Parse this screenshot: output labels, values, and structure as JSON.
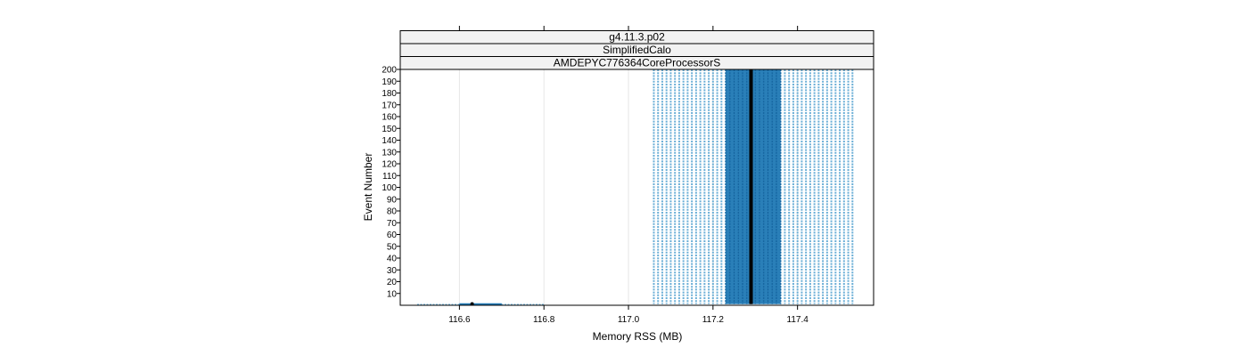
{
  "chart_data": {
    "type": "scatter",
    "strips": [
      "g4.11.3.p02",
      "SimplifiedCalo",
      "AMDEPYC776364CoreProcessorS"
    ],
    "xlabel": "Memory RSS (MB)",
    "ylabel": "Event Number",
    "xlim": [
      116.46,
      117.58
    ],
    "ylim": [
      0,
      200
    ],
    "x_ticks": [
      116.6,
      116.8,
      117.0,
      117.2,
      117.4
    ],
    "x_tick_labels": [
      "116.6",
      "116.8",
      "117.0",
      "117.2",
      "117.4"
    ],
    "y_ticks": [
      10,
      20,
      30,
      40,
      50,
      60,
      70,
      80,
      90,
      100,
      110,
      120,
      130,
      140,
      150,
      160,
      170,
      180,
      190,
      200
    ],
    "y_tick_labels": [
      "10",
      "20",
      "30",
      "40",
      "50",
      "60",
      "70",
      "80",
      "90",
      "100",
      "110",
      "120",
      "130",
      "140",
      "150",
      "160",
      "170",
      "180",
      "190",
      "200"
    ],
    "grid": true,
    "series": [
      {
        "style": "light-dotted",
        "x_start": 117.06,
        "x_end": 117.53,
        "x_step": 0.01,
        "y_range": [
          1,
          200
        ]
      },
      {
        "style": "dense-band",
        "x_start": 117.23,
        "x_end": 117.36,
        "y_range": [
          1,
          200
        ]
      },
      {
        "style": "median-line",
        "x": 117.29,
        "y_range": [
          1,
          200
        ]
      },
      {
        "style": "low-row",
        "x_start": 116.5,
        "x_end": 116.8,
        "y": 0,
        "dense_x_start": 116.6,
        "dense_x_end": 116.7,
        "point_x": 116.63
      }
    ],
    "colors": {
      "light": "#6aaed6",
      "dense": "#1f78b4",
      "median": "#000000",
      "grid": "#e6e6e6",
      "strip_bg": "#f2f2f2"
    }
  }
}
